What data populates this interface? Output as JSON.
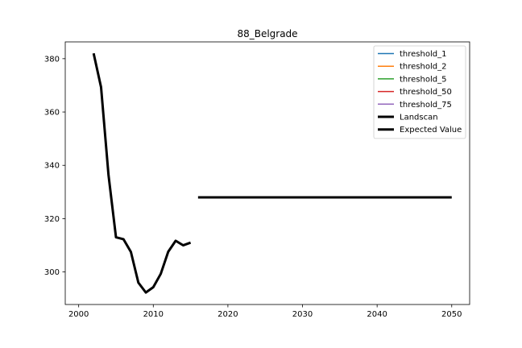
{
  "chart_data": {
    "type": "line",
    "title": "88_Belgrade",
    "xlabel": "",
    "ylabel": "",
    "xlim": [
      1998.2,
      2052.4
    ],
    "ylim": [
      287.8,
      386.3
    ],
    "xticks": [
      2000,
      2010,
      2020,
      2030,
      2040,
      2050
    ],
    "yticks": [
      300,
      320,
      340,
      360,
      380
    ],
    "grid": false,
    "legend_position": "top-right",
    "series": [
      {
        "name": "threshold_1",
        "color": "#1f77b4",
        "linewidth": 1.5,
        "x": [],
        "y": []
      },
      {
        "name": "threshold_2",
        "color": "#ff7f0e",
        "linewidth": 1.5,
        "x": [],
        "y": []
      },
      {
        "name": "threshold_5",
        "color": "#2ca02c",
        "linewidth": 1.5,
        "x": [],
        "y": []
      },
      {
        "name": "threshold_50",
        "color": "#d62728",
        "linewidth": 1.5,
        "x": [],
        "y": []
      },
      {
        "name": "threshold_75",
        "color": "#9467bd",
        "linewidth": 1.5,
        "x": [],
        "y": []
      },
      {
        "name": "Landscan",
        "color": "#000000",
        "linewidth": 3,
        "x": [
          2002,
          2003,
          2004,
          2005,
          2006,
          2007,
          2008,
          2009,
          2010,
          2011,
          2012,
          2013,
          2014,
          2015
        ],
        "y": [
          382,
          369.3,
          336.3,
          313,
          312.3,
          307.5,
          296,
          292.3,
          294.3,
          299.3,
          307.6,
          311.7,
          310,
          311
        ]
      },
      {
        "name": "Expected Value",
        "color": "#000000",
        "linewidth": 3,
        "x": [
          2016,
          2050
        ],
        "y": [
          328,
          328
        ]
      }
    ]
  }
}
